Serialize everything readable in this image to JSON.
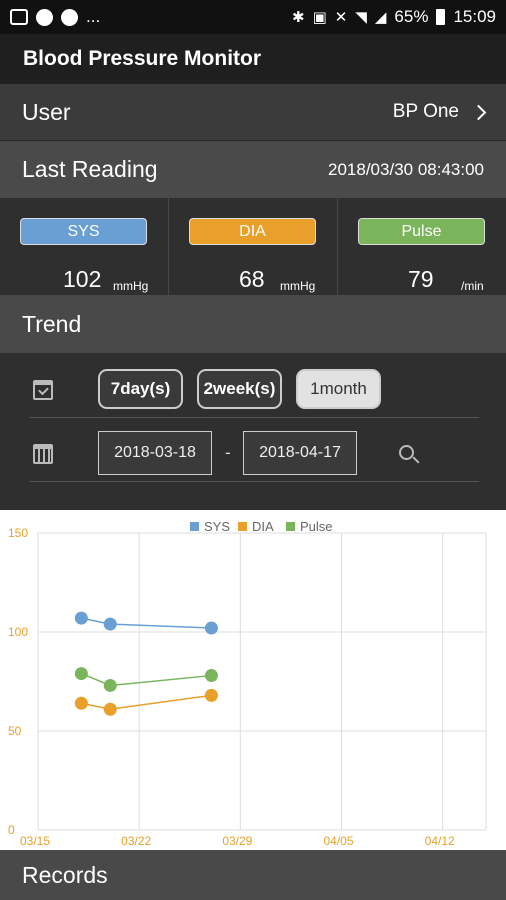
{
  "status_bar": {
    "dots": "...",
    "battery": "65%",
    "time": "15:09"
  },
  "app_title": "Blood Pressure Monitor",
  "user_row": {
    "label": "User",
    "value": "BP One"
  },
  "last_reading": {
    "label": "Last Reading",
    "timestamp": "2018/03/30 08:43:00",
    "sys": {
      "label": "SYS",
      "value": "102",
      "unit": "mmHg",
      "color": "#6a9fd4"
    },
    "dia": {
      "label": "DIA",
      "value": "68",
      "unit": "mmHg",
      "color": "#e8a02a"
    },
    "pulse": {
      "label": "Pulse",
      "value": "79",
      "unit": "/min",
      "color": "#7ab55c"
    }
  },
  "trend": {
    "title": "Trend",
    "ranges": [
      "7day(s)",
      "2week(s)",
      "1month"
    ],
    "selected_range": "1month",
    "date_from": "2018-03-18",
    "date_separator": "-",
    "date_to": "2018-04-17"
  },
  "chart_data": {
    "type": "line",
    "x_ticks": [
      "03/15",
      "03/22",
      "03/29",
      "04/05",
      "04/12"
    ],
    "y_ticks": [
      "0",
      "50",
      "100",
      "150"
    ],
    "ylim": [
      0,
      150
    ],
    "xlim": [
      "2018-03-15",
      "2018-04-15"
    ],
    "grid": true,
    "legend_position": "top-center",
    "series": [
      {
        "name": "SYS",
        "color": "#6a9fd4",
        "x": [
          "2018-03-18",
          "2018-03-20",
          "2018-03-27"
        ],
        "values": [
          107,
          104,
          102
        ]
      },
      {
        "name": "DIA",
        "color": "#e8a02a",
        "x": [
          "2018-03-18",
          "2018-03-20",
          "2018-03-27"
        ],
        "values": [
          64,
          61,
          68
        ]
      },
      {
        "name": "Pulse",
        "color": "#7ab55c",
        "x": [
          "2018-03-18",
          "2018-03-20",
          "2018-03-27"
        ],
        "values": [
          79,
          73,
          78
        ]
      }
    ]
  },
  "records": {
    "title": "Records"
  }
}
